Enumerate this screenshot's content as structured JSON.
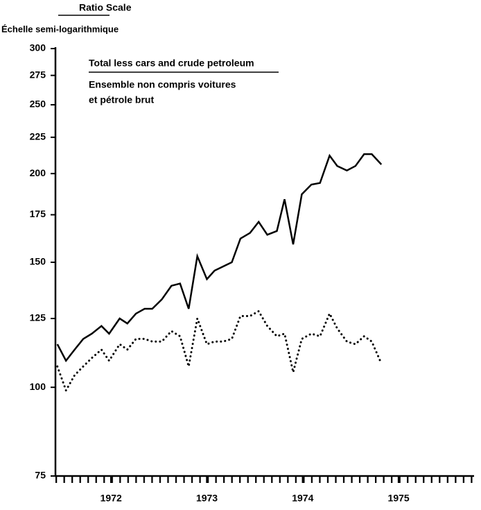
{
  "chart_data": {
    "type": "line",
    "axis_title": "Ratio Scale",
    "axis_subtitle": "Échelle semi-logarithmique",
    "log_scale": true,
    "ylim": [
      75,
      300
    ],
    "yticks": [
      75,
      100,
      125,
      150,
      175,
      200,
      225,
      250,
      275,
      300
    ],
    "xlim": [
      1971.92,
      1976.28
    ],
    "xticks": [
      {
        "value": 1972.5,
        "label": "1972"
      },
      {
        "value": 1973.5,
        "label": "1973"
      },
      {
        "value": 1974.5,
        "label": "1974"
      },
      {
        "value": 1975.5,
        "label": "1975"
      }
    ],
    "x": [
      1971.94,
      1972.03,
      1972.12,
      1972.21,
      1972.3,
      1972.4,
      1972.48,
      1972.59,
      1972.67,
      1972.76,
      1972.85,
      1972.93,
      1973.03,
      1973.13,
      1973.22,
      1973.31,
      1973.4,
      1973.5,
      1973.58,
      1973.67,
      1973.76,
      1973.85,
      1973.95,
      1974.04,
      1974.13,
      1974.23,
      1974.31,
      1974.4,
      1974.49,
      1974.59,
      1974.68,
      1974.78,
      1974.86,
      1974.96,
      1975.05,
      1975.14,
      1975.22,
      1975.32
    ],
    "series": [
      {
        "name": "Total less cars and crude petroleum",
        "name_fr": [
          "Ensemble non compris voitures",
          "et pétrole brut"
        ],
        "color": "#000000",
        "style": "solid",
        "values": [
          115,
          109,
          113,
          117,
          119,
          122,
          119,
          125,
          123,
          127,
          129,
          129,
          133,
          139,
          140,
          129,
          153,
          142,
          146,
          148,
          150,
          162,
          165,
          171,
          164,
          166,
          184,
          159,
          187,
          193,
          194,
          212,
          205,
          202,
          205,
          213,
          213,
          206
        ]
      },
      {
        "color": "#000000",
        "style": "dotted",
        "values": [
          107,
          99,
          104,
          107,
          110,
          113,
          109,
          115,
          113,
          117,
          117,
          116,
          116,
          120,
          118,
          107,
          125,
          115,
          116,
          116,
          117,
          126,
          126,
          128,
          122,
          118,
          119,
          105,
          117,
          119,
          118,
          127,
          121,
          116,
          115,
          118,
          116,
          108
        ]
      }
    ]
  }
}
